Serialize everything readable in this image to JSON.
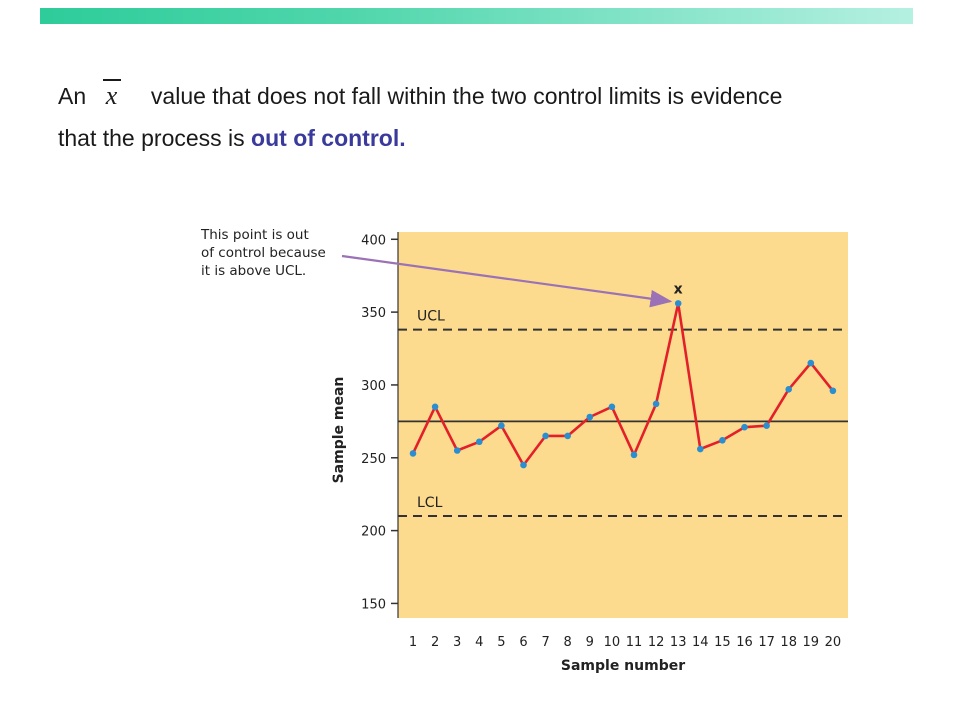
{
  "header": {
    "line1_pre": "An",
    "xbar_symbol": "x",
    "line1_post": "value that does not fall within the two control limits is evidence",
    "line2_pre": "that the process is",
    "line2_emph": "out of control."
  },
  "chart_data": {
    "type": "line",
    "xlabel": "Sample number",
    "ylabel": "Sample mean",
    "x": [
      1,
      2,
      3,
      4,
      5,
      6,
      7,
      8,
      9,
      10,
      11,
      12,
      13,
      14,
      15,
      16,
      17,
      18,
      19,
      20
    ],
    "series": [
      {
        "values": [
          253,
          285,
          255,
          261,
          272,
          245,
          265,
          265,
          278,
          285,
          252,
          287,
          356,
          256,
          262,
          271,
          272,
          297,
          315,
          296
        ]
      }
    ],
    "ylim": [
      140,
      405
    ],
    "yticks": [
      150,
      200,
      250,
      300,
      350,
      400
    ],
    "center_line": 275,
    "ucl": {
      "label": "UCL",
      "value": 338
    },
    "lcl": {
      "label": "LCL",
      "value": 210
    },
    "out_of_control": {
      "sample": 13,
      "marker": "x"
    },
    "annotation": {
      "lines": [
        "This point is out",
        "of control because",
        "it is above UCL."
      ]
    },
    "colors": {
      "plot_background": "#fddb8e",
      "line": "#e3202a",
      "points": "#2a8fd0",
      "arrow": "#9b72b5",
      "control_lines": "#333333"
    },
    "grid": false
  }
}
